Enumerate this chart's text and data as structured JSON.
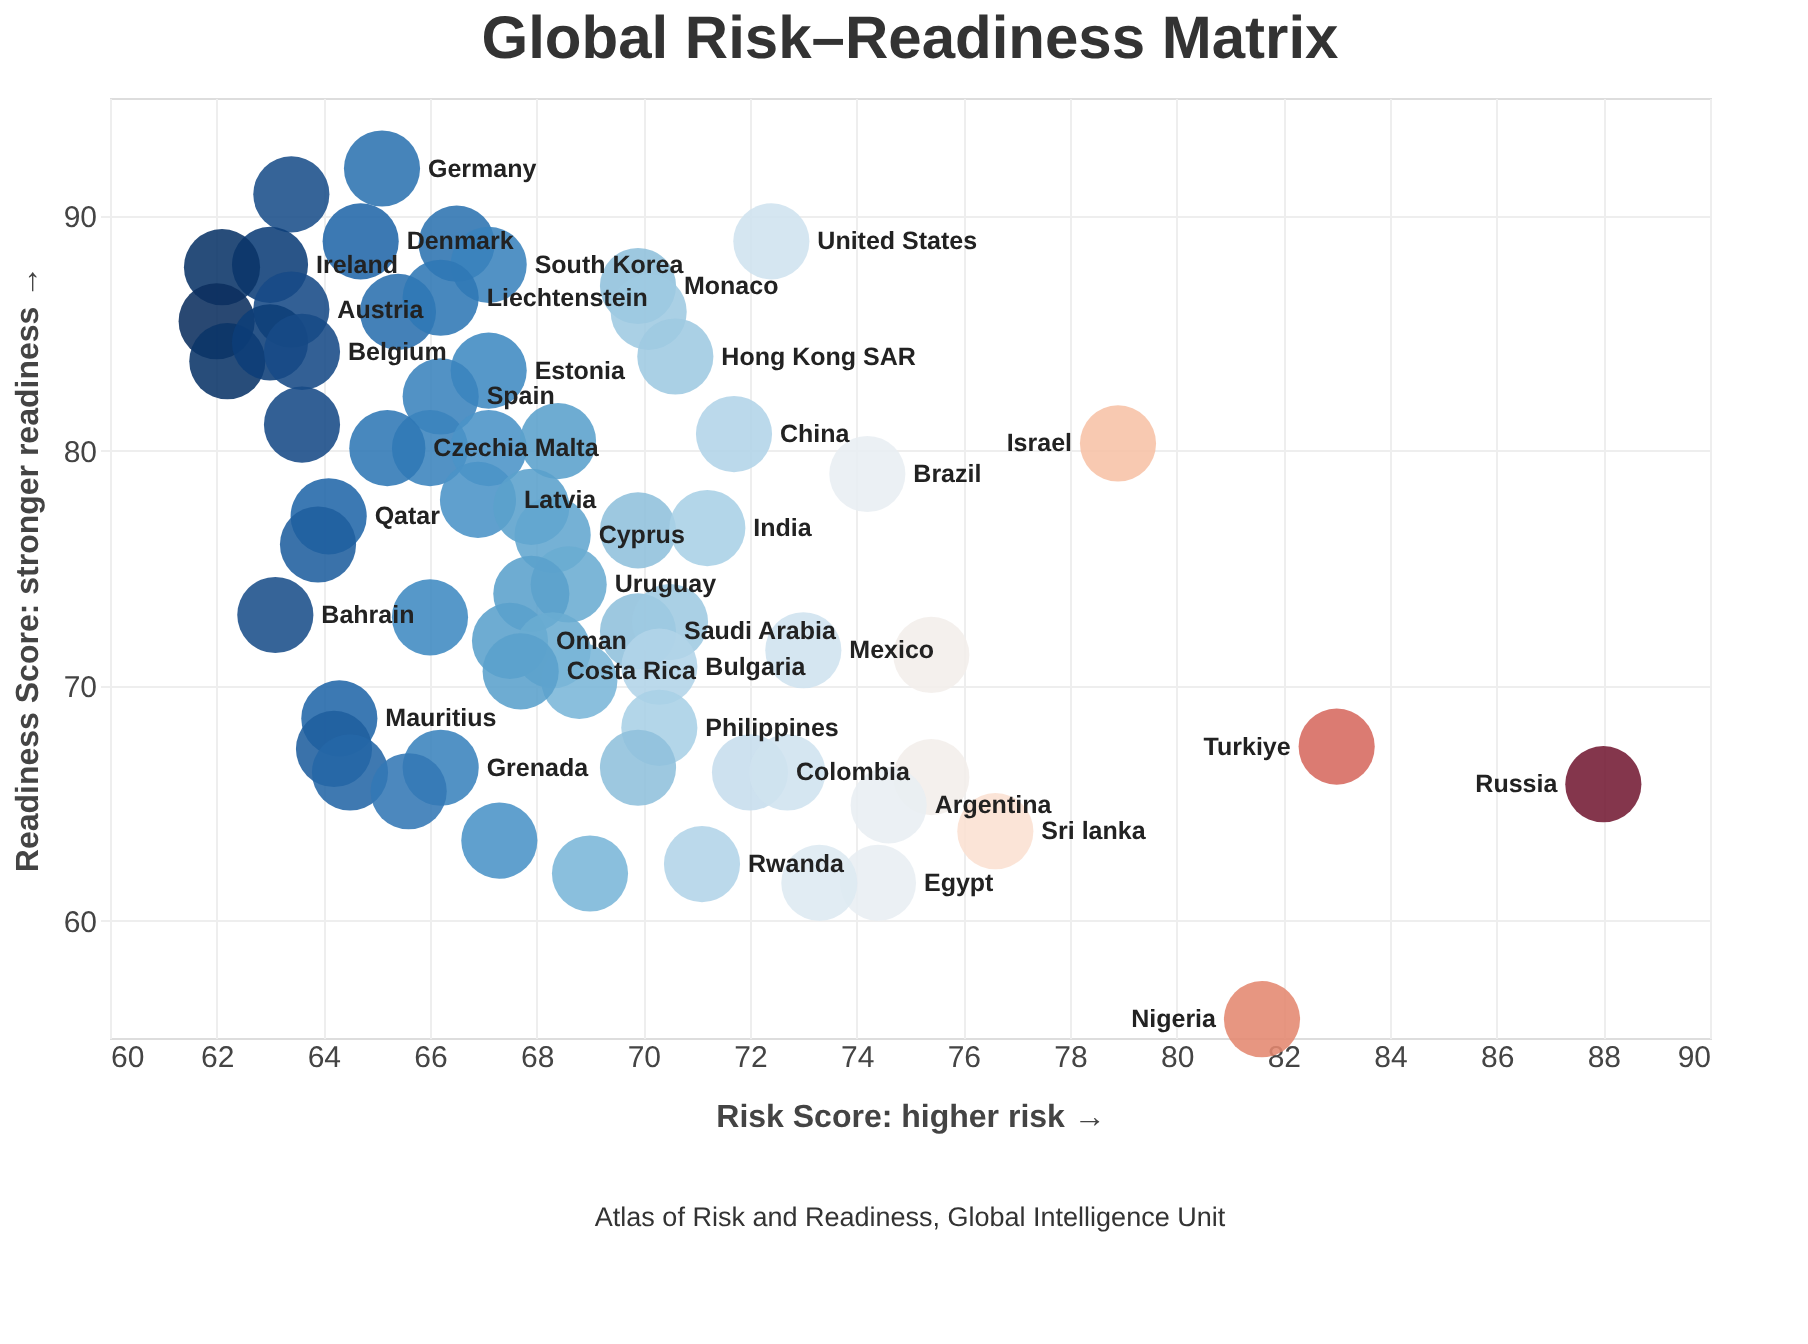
{
  "chart_data": {
    "type": "scatter",
    "title": "Global Risk–Readiness Matrix",
    "xlabel": "Risk Score: higher risk →",
    "ylabel": "Readiness Score: stronger readiness →",
    "x": [
      65.1,
      63.4,
      66.5,
      64.7,
      67.1,
      63.0,
      62.1,
      63.4,
      62.0,
      62.2,
      63.0,
      63.6,
      63.6,
      65.4,
      66.2,
      69.9,
      70.1,
      70.6,
      67.1,
      66.2,
      66.0,
      65.2,
      67.1,
      68.4,
      71.7,
      74.2,
      78.9,
      72.4,
      66.9,
      67.9,
      68.3,
      64.1,
      63.9,
      69.9,
      71.2,
      68.6,
      67.9,
      63.1,
      66.0,
      67.5,
      68.3,
      69.9,
      70.5,
      68.8,
      67.7,
      70.3,
      73.0,
      75.4,
      70.3,
      69.9,
      64.3,
      64.2,
      64.5,
      66.2,
      65.6,
      72.0,
      72.7,
      75.4,
      76.6,
      74.6,
      74.4,
      73.3,
      67.3,
      71.1,
      69.0,
      83.0,
      88.0,
      81.6
    ],
    "values": [
      92.0,
      90.9,
      88.8,
      88.9,
      87.9,
      87.9,
      87.8,
      86.0,
      85.5,
      83.8,
      84.6,
      84.2,
      81.1,
      85.9,
      86.5,
      87.0,
      85.9,
      84.0,
      83.4,
      82.3,
      80.1,
      80.1,
      80.1,
      80.4,
      80.7,
      79.0,
      80.3,
      88.9,
      77.9,
      77.6,
      76.4,
      77.2,
      76.0,
      76.6,
      76.7,
      74.3,
      73.9,
      73.0,
      72.9,
      71.9,
      71.5,
      72.3,
      72.7,
      70.2,
      70.6,
      70.8,
      71.5,
      71.3,
      68.2,
      66.5,
      68.6,
      67.3,
      66.3,
      66.5,
      65.5,
      66.3,
      66.3,
      66.1,
      63.8,
      64.9,
      61.6,
      61.6,
      63.4,
      62.4,
      62.0,
      67.4,
      65.8,
      55.8
    ],
    "colors": [
      "#2c73b0",
      "#1a4f8a",
      "#2c73b0",
      "#2166a8",
      "#3a83bd",
      "#0c3d78",
      "#0a3468",
      "#174a86",
      "#0b2f5e",
      "#0a3468",
      "#0c3d78",
      "#174a86",
      "#174a86",
      "#2a6fae",
      "#2f78b5",
      "#8fc0dc",
      "#9ecae1",
      "#9ecae1",
      "#3f8ac2",
      "#3a83bd",
      "#3a83bd",
      "#2f78b5",
      "#4a93c7",
      "#5aa0cc",
      "#b2d4e8",
      "#e8eef2",
      "#f7c2a6",
      "#cfe3ef",
      "#4a93c7",
      "#5aa0cc",
      "#62a6cf",
      "#2166a8",
      "#1f5f9e",
      "#8fc0dc",
      "#a9d0e6",
      "#6aacd2",
      "#5aa0cc",
      "#1a4f8a",
      "#3f8ac2",
      "#5aa0cc",
      "#6aacd2",
      "#8fc0dc",
      "#9ecae1",
      "#7ab6d8",
      "#5aa0cc",
      "#b2d4e8",
      "#cfe3ef",
      "#f3eeeb",
      "#a9d0e6",
      "#8fc0dc",
      "#2166a8",
      "#1f5f9e",
      "#2466a6",
      "#3a83bd",
      "#3378b5",
      "#c6dded",
      "#cfe3ef",
      "#f3eeeb",
      "#fbe0d2",
      "#e8eef2",
      "#e8eef2",
      "#dde9f1",
      "#4a93c7",
      "#b2d4e8",
      "#7ab6d8",
      "#d6695f",
      "#731a33",
      "#e4876f"
    ],
    "xlim": [
      60,
      90
    ],
    "ylim": [
      55,
      95
    ],
    "xticks": [
      60,
      62,
      64,
      66,
      68,
      70,
      72,
      74,
      76,
      78,
      80,
      82,
      84,
      86,
      88,
      90
    ],
    "yticks": [
      60,
      70,
      80,
      90
    ],
    "grid": true,
    "annotations": [
      {
        "text": "Germany",
        "x": 65.1,
        "y": 92.0
      },
      {
        "text": "Denmark",
        "x": 64.7,
        "y": 88.9
      },
      {
        "text": "South Korea",
        "x": 67.1,
        "y": 87.9
      },
      {
        "text": "Ireland",
        "x": 63.0,
        "y": 87.9
      },
      {
        "text": "Austria",
        "x": 63.4,
        "y": 86.0
      },
      {
        "text": "Belgium",
        "x": 63.6,
        "y": 84.2
      },
      {
        "text": "Liechtenstein",
        "x": 66.2,
        "y": 86.5
      },
      {
        "text": "Estonia",
        "x": 67.1,
        "y": 83.4
      },
      {
        "text": "Spain",
        "x": 66.2,
        "y": 82.3
      },
      {
        "text": "Czechia",
        "x": 65.2,
        "y": 80.1
      },
      {
        "text": "Malta",
        "x": 67.1,
        "y": 80.1
      },
      {
        "text": "Latvia",
        "x": 66.9,
        "y": 77.9
      },
      {
        "text": "Qatar",
        "x": 64.1,
        "y": 77.2
      },
      {
        "text": "Bahrain",
        "x": 63.1,
        "y": 73.0
      },
      {
        "text": "Mauritius",
        "x": 64.3,
        "y": 68.6
      },
      {
        "text": "Grenada",
        "x": 66.2,
        "y": 66.5
      },
      {
        "text": "Cyprus",
        "x": 68.3,
        "y": 76.4
      },
      {
        "text": "Uruguay",
        "x": 68.6,
        "y": 74.3
      },
      {
        "text": "Oman",
        "x": 67.5,
        "y": 71.9
      },
      {
        "text": "Costa Rica",
        "x": 67.7,
        "y": 70.6
      },
      {
        "text": "Saudi Arabia",
        "x": 69.9,
        "y": 72.3
      },
      {
        "text": "Bulgaria",
        "x": 70.3,
        "y": 70.8
      },
      {
        "text": "Mexico",
        "x": 73.0,
        "y": 71.5
      },
      {
        "text": "Philippines",
        "x": 70.3,
        "y": 68.2
      },
      {
        "text": "Colombia",
        "x": 72.0,
        "y": 66.3
      },
      {
        "text": "Rwanda",
        "x": 71.1,
        "y": 62.4
      },
      {
        "text": "Argentina",
        "x": 74.6,
        "y": 64.9
      },
      {
        "text": "Egypt",
        "x": 74.4,
        "y": 61.6
      },
      {
        "text": "Sri lanka",
        "x": 76.6,
        "y": 63.8
      },
      {
        "text": "Monaco",
        "x": 69.9,
        "y": 87.0
      },
      {
        "text": "Hong Kong SAR",
        "x": 70.6,
        "y": 84.0
      },
      {
        "text": "United States",
        "x": 72.4,
        "y": 88.9
      },
      {
        "text": "China",
        "x": 71.7,
        "y": 80.7
      },
      {
        "text": "Brazil",
        "x": 74.2,
        "y": 79.0
      },
      {
        "text": "India",
        "x": 71.2,
        "y": 76.7
      },
      {
        "text": "Israel",
        "x": 78.9,
        "y": 80.3
      },
      {
        "text": "Turkiye",
        "x": 83.0,
        "y": 67.4
      },
      {
        "text": "Russia",
        "x": 88.0,
        "y": 65.8
      },
      {
        "text": "Nigeria",
        "x": 81.6,
        "y": 55.8
      },
      "Atlas of Risk and Readiness, Global Intelligence Unit"
    ]
  }
}
